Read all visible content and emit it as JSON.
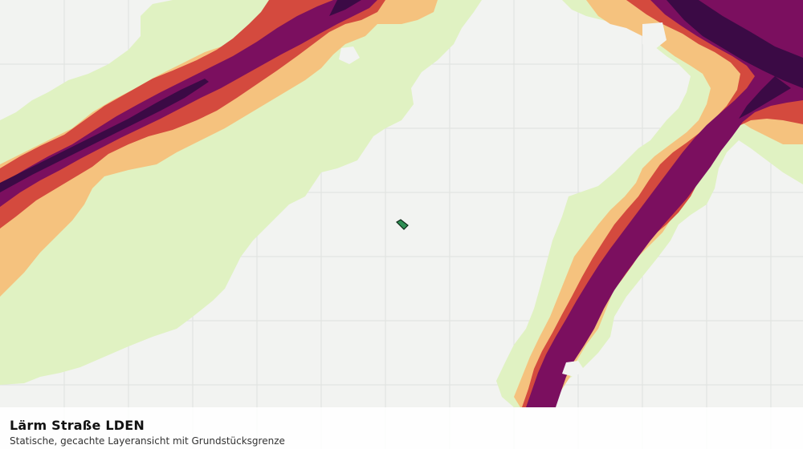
{
  "map": {
    "layer_title": "Lärm Straße LDEN",
    "layer_subtitle": "Statische, gecachte Layeransicht mit Grundstücksgrenze",
    "colors": {
      "background": "#f2f3f1",
      "grid": "#dfe1de",
      "band_light": "#e0f2c2",
      "band_orange": "#f5c27e",
      "band_red": "#d44a3e",
      "band_purple": "#7b0f5f",
      "band_dark": "#3b0a45",
      "parcel_fill": "#2f8f55",
      "parcel_stroke": "#0d2a17"
    }
  }
}
